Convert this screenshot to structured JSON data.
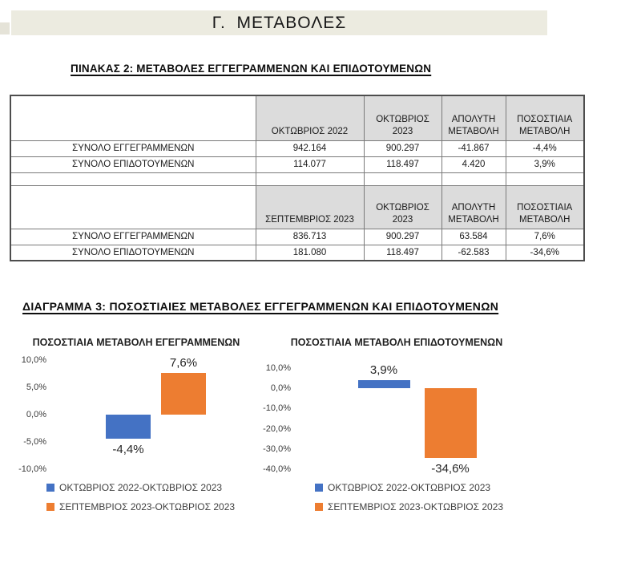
{
  "page": {
    "banner_title": "Γ.  ΜΕΤΑΒΟΛΕΣ",
    "table_heading": "ΠΙΝΑΚΑΣ 2: ΜΕΤΑΒΟΛΕΣ ΕΓΓΕΓΡΑΜΜΕΝΩΝ ΚΑΙ ΕΠΙΔΟΤΟΥΜΕΝΩΝ",
    "diagram_heading": "ΔΙΑΓΡΑΜΜΑ 3: ΠΟΣΟΣΤΙΑΙΕΣ ΜΕΤΑΒΟΛΕΣ ΕΓΓΕΓΡΑΜΜΕΝΩΝ ΚΑΙ ΕΠΙΔΟΤΟΥΜΕΝΩΝ"
  },
  "colors": {
    "banner_bg": "#ECEBE0",
    "table_header_bg": "#DCDCDC",
    "series_blue": "#4472C4",
    "series_orange": "#ED7D31"
  },
  "table": {
    "blocks": [
      {
        "headers": [
          "",
          "ΟΚΤΩΒΡΙΟΣ 2022",
          "ΟΚΤΩΒΡΙΟΣ 2023",
          "ΑΠΟΛΥΤΗ ΜΕΤΑΒΟΛΗ",
          "ΠΟΣΟΣΤΙΑΙΑ ΜΕΤΑΒΟΛΗ"
        ],
        "rows": [
          [
            "ΣΥΝΟΛΟ ΕΓΓΕΓΡΑΜΜΕΝΩΝ",
            "942.164",
            "900.297",
            "-41.867",
            "-4,4%"
          ],
          [
            "ΣΥΝΟΛΟ ΕΠΙΔΟΤΟΥΜΕΝΩΝ",
            "114.077",
            "118.497",
            "4.420",
            "3,9%"
          ]
        ]
      },
      {
        "headers": [
          "",
          "ΣΕΠΤΕΜΒΡΙΟΣ 2023",
          "ΟΚΤΩΒΡΙΟΣ 2023",
          "ΑΠΟΛΥΤΗ ΜΕΤΑΒΟΛΗ",
          "ΠΟΣΟΣΤΙΑΙΑ ΜΕΤΑΒΟΛΗ"
        ],
        "rows": [
          [
            "ΣΥΝΟΛΟ ΕΓΓΕΓΡΑΜΜΕΝΩΝ",
            "836.713",
            "900.297",
            "63.584",
            "7,6%"
          ],
          [
            "ΣΥΝΟΛΟ ΕΠΙΔΟΤΟΥΜΕΝΩΝ",
            "181.080",
            "118.497",
            "-62.583",
            "-34,6%"
          ]
        ]
      }
    ]
  },
  "chart_data": [
    {
      "type": "bar",
      "title": "ΠΟΣΟΣΤΙΑΙΑ ΜΕΤΑΒΟΛΗ ΕΓΕΓΡΑΜΜΕΝΩΝ",
      "ylim": [
        -10,
        10
      ],
      "y_ticks": [
        "10,0%",
        "5,0%",
        "0,0%",
        "-5,0%",
        "-10,0%"
      ],
      "grid": false,
      "legend_position": "bottom",
      "series": [
        {
          "name": "ΟΚΤΩΒΡΙΟΣ 2022-ΟΚΤΩΒΡΙΟΣ 2023",
          "value": -4.4,
          "label": "-4,4%",
          "color": "#4472C4"
        },
        {
          "name": "ΣΕΠΤΕΜΒΡΙΟΣ 2023-ΟΚΤΩΒΡΙΟΣ 2023",
          "value": 7.6,
          "label": "7,6%",
          "color": "#ED7D31"
        }
      ]
    },
    {
      "type": "bar",
      "title": "ΠΟΣΟΣΤΙΑΙΑ ΜΕΤΑΒΟΛΗ ΕΠΙΔΟΤΟΥΜΕΝΩΝ",
      "ylim": [
        -40,
        10
      ],
      "y_ticks": [
        "10,0%",
        "0,0%",
        "-10,0%",
        "-20,0%",
        "-30,0%",
        "-40,0%"
      ],
      "grid": false,
      "legend_position": "bottom",
      "series": [
        {
          "name": "ΟΚΤΩΒΡΙΟΣ 2022-ΟΚΤΩΒΡΙΟΣ 2023",
          "value": 3.9,
          "label": "3,9%",
          "color": "#4472C4"
        },
        {
          "name": "ΣΕΠΤΕΜΒΡΙΟΣ 2023-ΟΚΤΩΒΡΙΟΣ 2023",
          "value": -34.6,
          "label": "-34,6%",
          "color": "#ED7D31"
        }
      ]
    }
  ]
}
